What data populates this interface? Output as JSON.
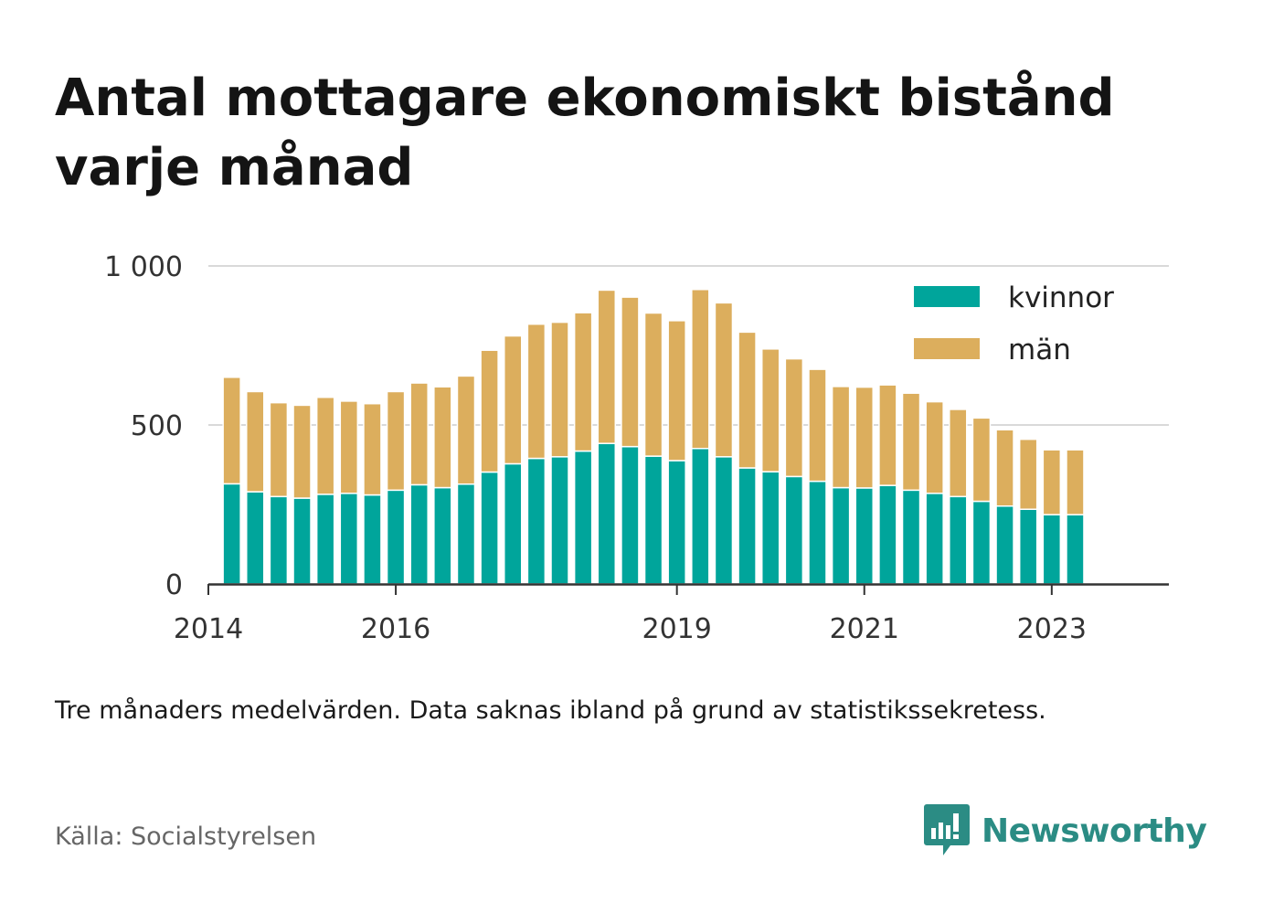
{
  "title": "Antal mottagare ekonomiskt bistånd varje månad",
  "note": "Tre månaders medelvärden. Data saknas ibland på grund av statistikssekretess.",
  "source": "Källa: Socialstyrelsen",
  "brand": {
    "name": "Newsworthy",
    "icon": "newsworthy-logo-icon",
    "color": "#2b8c84"
  },
  "colors": {
    "kvinnor": "#00a59b",
    "man": "#dcae5d",
    "grid": "#d9d9d9",
    "axis": "#333333"
  },
  "chart_data": {
    "type": "bar",
    "stacked": true,
    "title": "Antal mottagare ekonomiskt bistånd varje månad",
    "xlabel": "",
    "ylabel": "",
    "ylim": [
      0,
      1000
    ],
    "yticks": [
      0,
      500,
      1000
    ],
    "ytick_labels": [
      "0",
      "500",
      "1 000"
    ],
    "xlim": [
      2014,
      2024.25
    ],
    "xticks": [
      2014,
      2016,
      2019,
      2021,
      2023
    ],
    "xtick_labels": [
      "2014",
      "2016",
      "2019",
      "2021",
      "2023"
    ],
    "grid": true,
    "legend": "top-right",
    "x": [
      2014.25,
      2014.5,
      2014.75,
      2015.0,
      2015.25,
      2015.5,
      2015.75,
      2016.0,
      2016.25,
      2016.5,
      2016.75,
      2017.0,
      2017.25,
      2017.5,
      2017.75,
      2018.0,
      2018.25,
      2018.5,
      2018.75,
      2019.0,
      2019.25,
      2019.5,
      2019.75,
      2020.0,
      2020.25,
      2020.5,
      2020.75,
      2021.0,
      2021.25,
      2021.5,
      2021.75,
      2022.0,
      2022.25,
      2022.5,
      2022.75,
      2023.0,
      2023.25
    ],
    "series": [
      {
        "name": "kvinnor",
        "values": [
          315,
          290,
          275,
          270,
          282,
          285,
          280,
          295,
          312,
          303,
          314,
          352,
          378,
          395,
          400,
          418,
          442,
          432,
          402,
          388,
          426,
          400,
          365,
          353,
          338,
          323,
          303,
          302,
          310,
          295,
          285,
          275,
          260,
          245,
          235,
          218,
          218
        ]
      },
      {
        "name": "män",
        "values": [
          335,
          315,
          295,
          292,
          305,
          290,
          287,
          310,
          320,
          317,
          340,
          383,
          402,
          422,
          423,
          435,
          482,
          470,
          450,
          440,
          500,
          484,
          427,
          386,
          370,
          352,
          318,
          317,
          316,
          305,
          288,
          274,
          262,
          240,
          220,
          204,
          204
        ]
      }
    ]
  }
}
